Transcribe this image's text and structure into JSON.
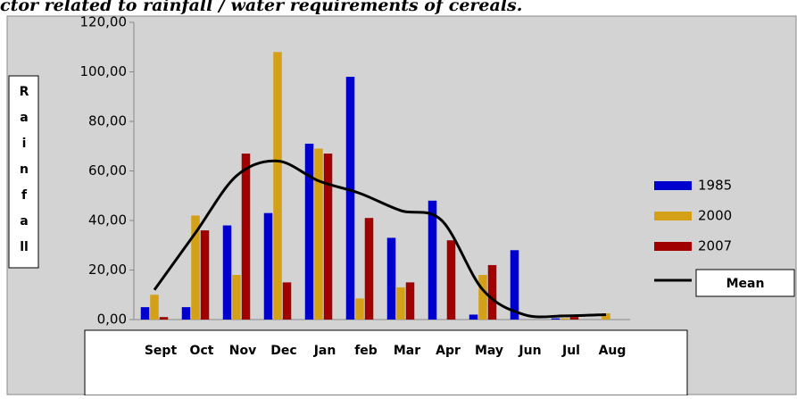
{
  "chart_data": {
    "type": "bar",
    "title": "ctor related to rainfall / water requirements of cereals.",
    "y_label_lines": [
      "R",
      "a",
      "i",
      "n",
      "f",
      "a",
      "ll"
    ],
    "categories": [
      "Sept",
      "Oct",
      "Nov",
      "Dec",
      "Jan",
      "feb",
      "Mar",
      "Apr",
      "May",
      "Jun",
      "Jul",
      "Aug"
    ],
    "series": [
      {
        "name": "1985",
        "color": "#0000cc",
        "values": [
          5,
          5,
          38,
          43,
          71,
          98,
          33,
          48,
          2,
          28,
          0.5,
          0
        ]
      },
      {
        "name": "2000",
        "color": "#d4a017",
        "values": [
          10,
          42,
          18,
          108,
          69,
          8.5,
          13,
          0,
          18,
          0,
          0.5,
          2.5
        ]
      },
      {
        "name": "2007",
        "color": "#a00000",
        "values": [
          1,
          36,
          67,
          15,
          67,
          41,
          15,
          32,
          22,
          0,
          1,
          0
        ]
      },
      {
        "name": "Mean",
        "type": "line",
        "color": "#000000",
        "values": [
          12,
          35,
          58,
          64,
          56,
          51,
          44,
          40,
          12,
          2,
          1.5,
          2
        ]
      }
    ],
    "ylim": [
      0,
      120
    ],
    "yticks": [
      {
        "value": 0,
        "label": "0,00"
      },
      {
        "value": 20,
        "label": "20,00"
      },
      {
        "value": 40,
        "label": "40,00"
      },
      {
        "value": 60,
        "label": "60,00"
      },
      {
        "value": 80,
        "label": "80,00"
      },
      {
        "value": 100,
        "label": "100,00"
      },
      {
        "value": 120,
        "label": "120,00"
      }
    ],
    "grid": false,
    "legend": "right"
  }
}
